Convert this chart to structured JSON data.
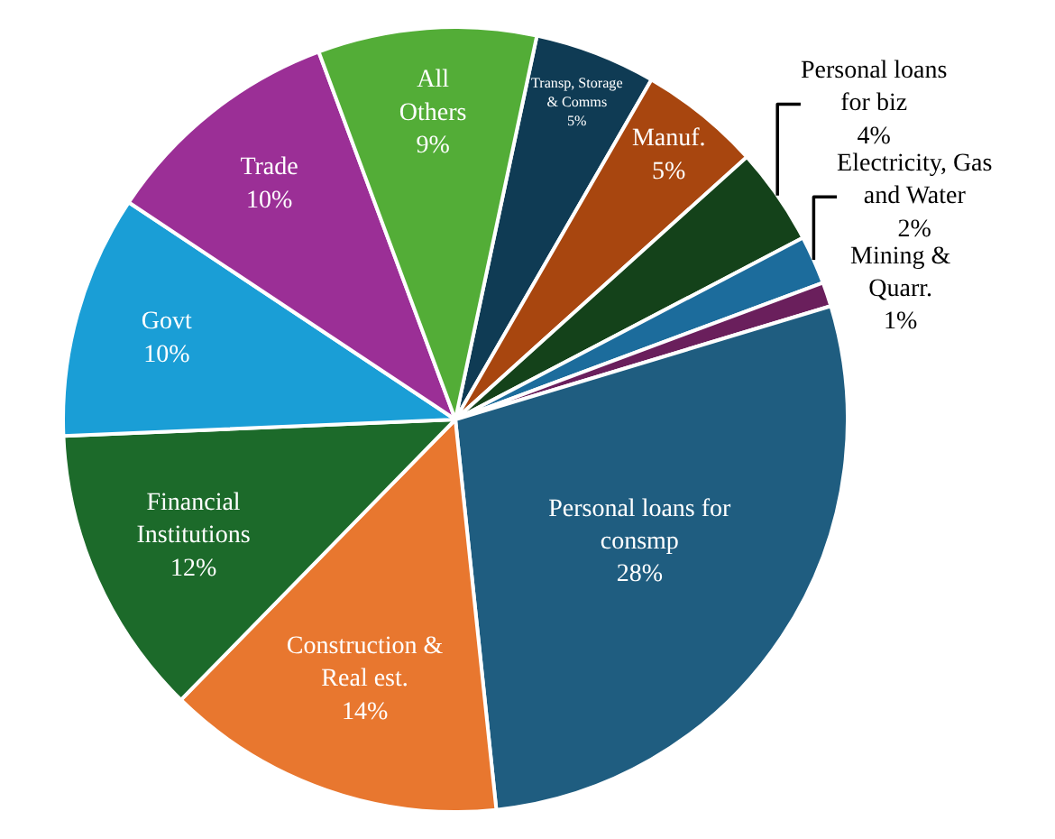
{
  "chart_data": {
    "type": "pie",
    "categories": [
      "Transp, Storage\n& Comms",
      "Manuf.",
      "Personal loans\nfor biz",
      "Electricity, Gas\nand Water",
      "Mining &\nQuarr.",
      "Personal loans for\nconsmp",
      "Construction &\nReal est.",
      "Financial\nInstitutions",
      "Govt",
      "Trade",
      "All\nOthers"
    ],
    "values": [
      5,
      5,
      4,
      2,
      1,
      28,
      14,
      12,
      10,
      10,
      9
    ],
    "value_labels": [
      "5%",
      "5%",
      "4%",
      "2%",
      "1%",
      "28%",
      "14%",
      "12%",
      "10%",
      "10%",
      "9%"
    ],
    "colors": [
      "#0f3b54",
      "#a8460f",
      "#14421a",
      "#1c6c9c",
      "#6a1f5c",
      "#1f5d80",
      "#e8772f",
      "#1c6a2a",
      "#1a9ed6",
      "#9b2f96",
      "#53ad37"
    ]
  }
}
